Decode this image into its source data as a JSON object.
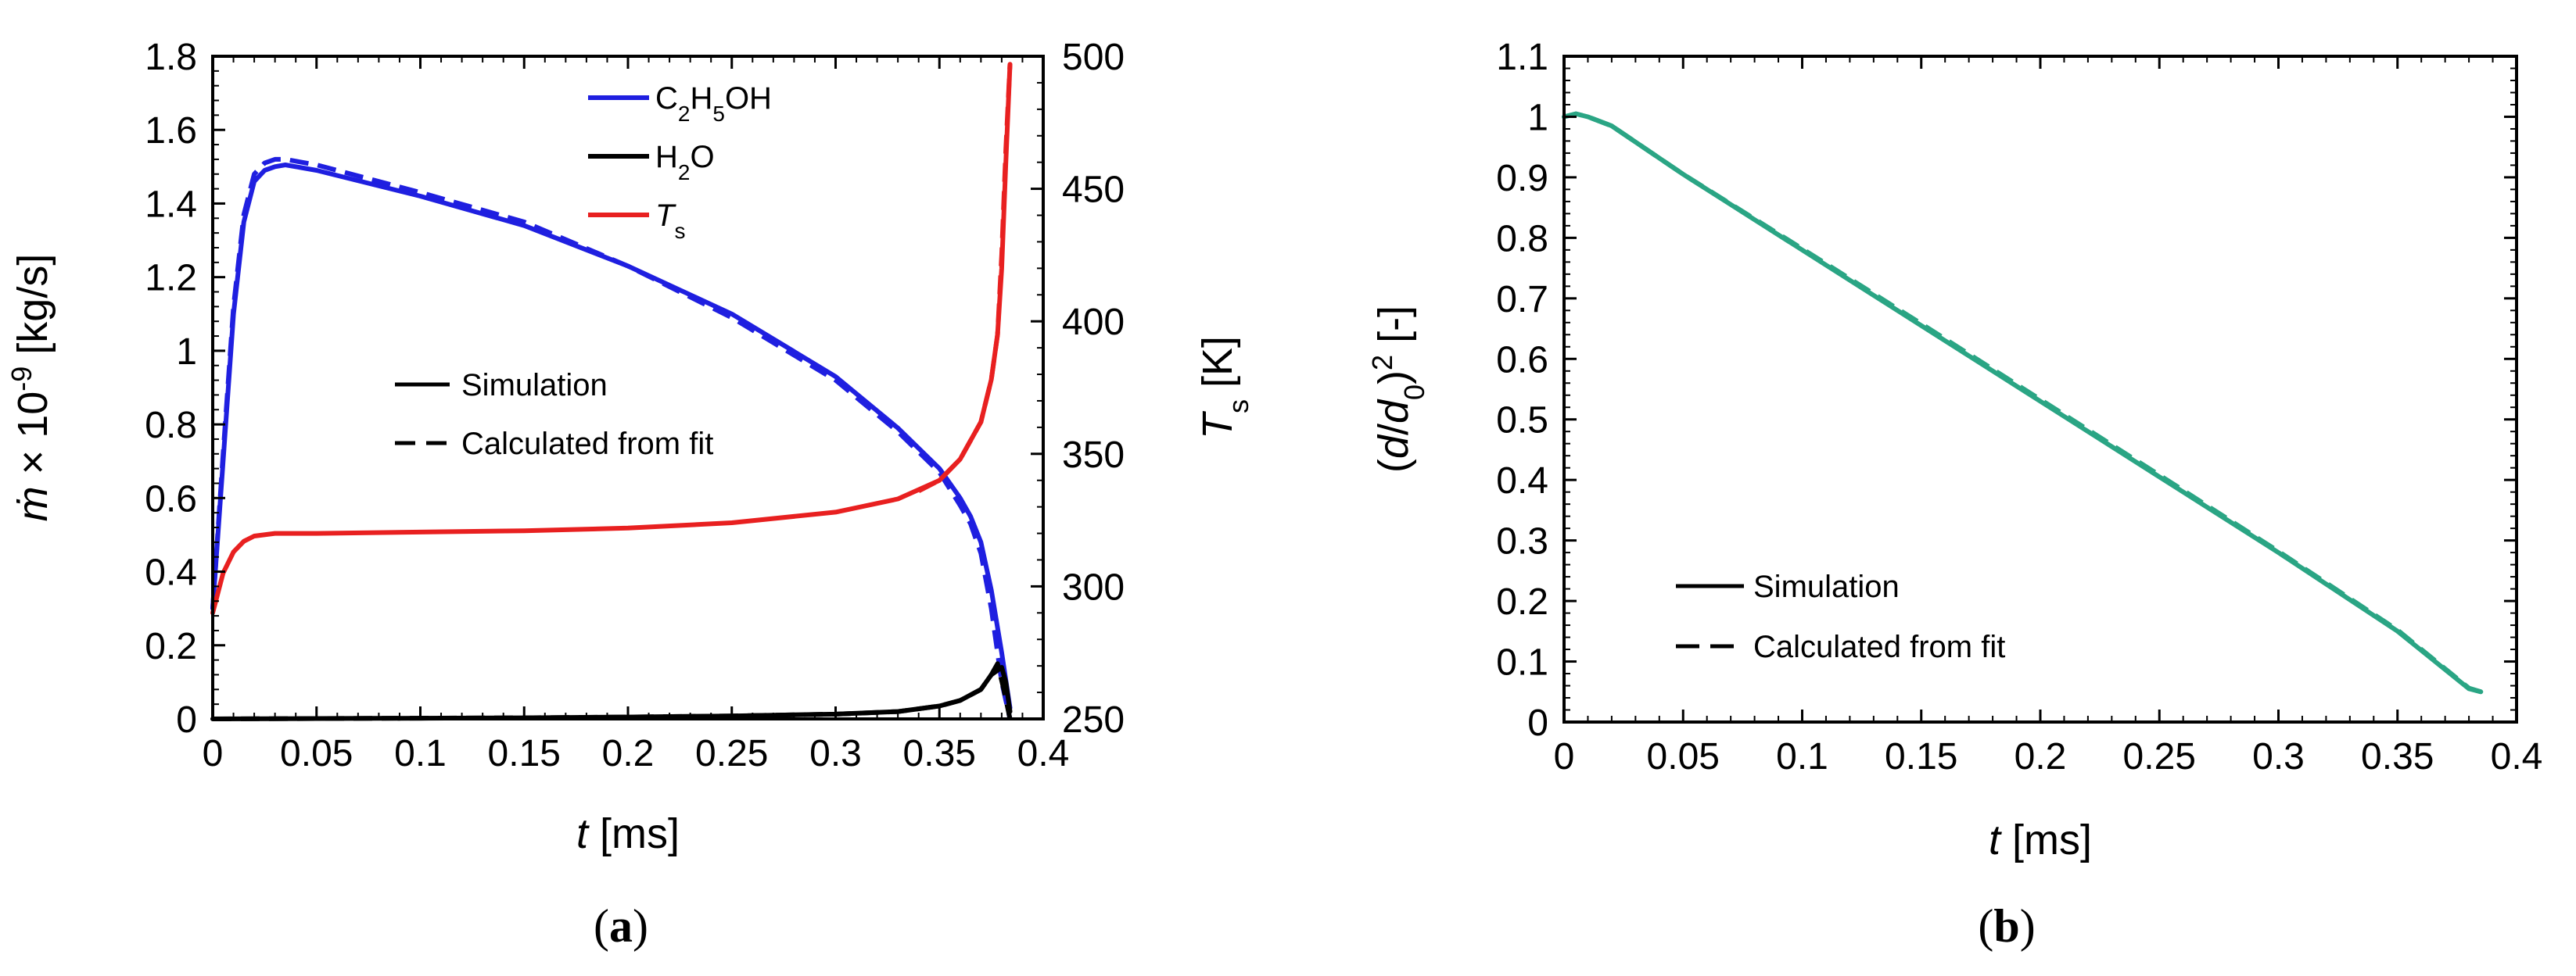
{
  "chart_data": [
    {
      "panel": "(a)",
      "panel_letter": "a",
      "type": "line",
      "x": {
        "label_var": "t",
        "label_unit": "[ms]",
        "lim": [
          0,
          0.4
        ],
        "ticks": [
          "0",
          "0.05",
          "0.1",
          "0.15",
          "0.2",
          "0.25",
          "0.3",
          "0.35",
          "0.4"
        ]
      },
      "y_left": {
        "label": "ṁ × 10⁻⁹ [kg/s]",
        "lim": [
          0,
          1.8
        ],
        "ticks": [
          "0",
          "0.2",
          "0.4",
          "0.6",
          "0.8",
          "1",
          "1.2",
          "1.4",
          "1.6",
          "1.8"
        ]
      },
      "y_right": {
        "label": "Ts [K]",
        "lim": [
          250,
          500
        ],
        "ticks": [
          "250",
          "300",
          "350",
          "400",
          "450",
          "500"
        ]
      },
      "species_legend": [
        {
          "key": "ethanol",
          "label": "C2H5OH",
          "color": "#1f1fe0"
        },
        {
          "key": "water",
          "label": "H2O",
          "color": "#000000"
        },
        {
          "key": "ts",
          "label": "Ts",
          "color": "#e82020"
        }
      ],
      "style_legend": [
        {
          "label": "Simulation",
          "dash": "solid"
        },
        {
          "label": "Calculated from fit",
          "dash": "dashed"
        }
      ],
      "series": [
        {
          "name": "C2H5OH simulation",
          "axis": "left",
          "color": "#1f1fe0",
          "dash": "solid",
          "x": [
            0,
            0.005,
            0.01,
            0.015,
            0.02,
            0.025,
            0.03,
            0.035,
            0.05,
            0.1,
            0.15,
            0.2,
            0.25,
            0.3,
            0.33,
            0.35,
            0.36,
            0.365,
            0.37,
            0.375,
            0.38,
            0.384
          ],
          "y": [
            0.3,
            0.7,
            1.1,
            1.35,
            1.46,
            1.49,
            1.5,
            1.505,
            1.49,
            1.42,
            1.34,
            1.23,
            1.1,
            0.93,
            0.79,
            0.68,
            0.6,
            0.55,
            0.48,
            0.35,
            0.18,
            0.03
          ]
        },
        {
          "name": "C2H5OH fit",
          "axis": "left",
          "color": "#1f1fe0",
          "dash": "dashed",
          "x": [
            0,
            0.005,
            0.01,
            0.015,
            0.02,
            0.025,
            0.03,
            0.035,
            0.05,
            0.1,
            0.15,
            0.2,
            0.25,
            0.3,
            0.33,
            0.35,
            0.36,
            0.365,
            0.37,
            0.375,
            0.38,
            0.384
          ],
          "y": [
            0.3,
            0.72,
            1.12,
            1.37,
            1.48,
            1.51,
            1.52,
            1.52,
            1.505,
            1.43,
            1.35,
            1.23,
            1.09,
            0.92,
            0.78,
            0.67,
            0.58,
            0.53,
            0.45,
            0.3,
            0.1,
            0.0
          ]
        },
        {
          "name": "H2O simulation",
          "axis": "left",
          "color": "#000000",
          "dash": "solid",
          "x": [
            0,
            0.05,
            0.1,
            0.15,
            0.2,
            0.25,
            0.3,
            0.33,
            0.35,
            0.36,
            0.37,
            0.375,
            0.38,
            0.382,
            0.384
          ],
          "y": [
            0.0,
            0.001,
            0.002,
            0.003,
            0.005,
            0.008,
            0.013,
            0.02,
            0.035,
            0.05,
            0.08,
            0.12,
            0.14,
            0.1,
            0.02
          ]
        },
        {
          "name": "H2O fit",
          "axis": "left",
          "color": "#000000",
          "dash": "dashed",
          "x": [
            0,
            0.05,
            0.1,
            0.15,
            0.2,
            0.25,
            0.3,
            0.33,
            0.35,
            0.36,
            0.37,
            0.375,
            0.378,
            0.381,
            0.384
          ],
          "y": [
            0.0,
            0.001,
            0.002,
            0.003,
            0.005,
            0.008,
            0.013,
            0.02,
            0.035,
            0.05,
            0.08,
            0.12,
            0.15,
            0.08,
            0.0
          ]
        },
        {
          "name": "Ts simulation",
          "axis": "right",
          "color": "#e82020",
          "dash": "solid",
          "x": [
            0,
            0.005,
            0.01,
            0.015,
            0.02,
            0.03,
            0.05,
            0.1,
            0.15,
            0.2,
            0.25,
            0.3,
            0.33,
            0.35,
            0.36,
            0.37,
            0.375,
            0.378,
            0.38,
            0.382,
            0.384
          ],
          "y": [
            290,
            305,
            313,
            317,
            319,
            320,
            320,
            320.5,
            321,
            322,
            324,
            328,
            333,
            340,
            348,
            362,
            378,
            395,
            420,
            460,
            497
          ]
        },
        {
          "name": "Ts fit",
          "axis": "right",
          "color": "#e82020",
          "dash": "dashed",
          "x": [
            0.34,
            0.35,
            0.36,
            0.37,
            0.375,
            0.378,
            0.38,
            0.382,
            0.384
          ],
          "y": [
            336,
            340,
            348,
            362,
            378,
            395,
            425,
            465,
            497
          ]
        }
      ],
      "caption": "(a)"
    },
    {
      "panel": "(b)",
      "panel_letter": "b",
      "type": "line",
      "x": {
        "label_var": "t",
        "label_unit": "[ms]",
        "lim": [
          0,
          0.4
        ],
        "ticks": [
          "0",
          "0.05",
          "0.1",
          "0.15",
          "0.2",
          "0.25",
          "0.3",
          "0.35",
          "0.4"
        ]
      },
      "y_left": {
        "label": "(d/d0)2 [-]",
        "lim": [
          0,
          1.1
        ],
        "ticks": [
          "0",
          "0.1",
          "0.2",
          "0.3",
          "0.4",
          "0.5",
          "0.6",
          "0.7",
          "0.8",
          "0.9",
          "1",
          "1.1"
        ]
      },
      "style_legend": [
        {
          "label": "Simulation",
          "dash": "solid"
        },
        {
          "label": "Calculated from fit",
          "dash": "dashed"
        }
      ],
      "series": [
        {
          "name": "Simulation",
          "axis": "left",
          "color": "#2aa584",
          "dash": "solid",
          "x": [
            0,
            0.005,
            0.01,
            0.02,
            0.05,
            0.1,
            0.15,
            0.2,
            0.25,
            0.3,
            0.35,
            0.38,
            0.385
          ],
          "y": [
            1.0,
            1.005,
            1.0,
            0.985,
            0.905,
            0.78,
            0.655,
            0.53,
            0.405,
            0.28,
            0.15,
            0.055,
            0.05
          ]
        },
        {
          "name": "Calculated from fit",
          "axis": "left",
          "color": "#2aa584",
          "dash": "dashed",
          "x": [
            0,
            0.005,
            0.01,
            0.02,
            0.05,
            0.1,
            0.15,
            0.2,
            0.25,
            0.3,
            0.35,
            0.38,
            0.385
          ],
          "y": [
            1.0,
            1.005,
            1.0,
            0.985,
            0.905,
            0.782,
            0.658,
            0.533,
            0.408,
            0.282,
            0.152,
            0.056,
            0.05
          ]
        }
      ],
      "caption": "(b)"
    }
  ]
}
